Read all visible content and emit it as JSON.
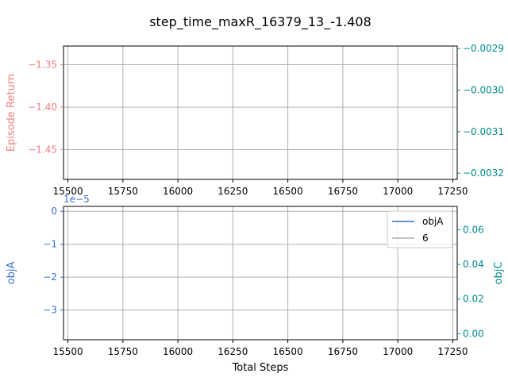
{
  "figure": {
    "title": "step_time_maxR_16379_13_-1.408"
  },
  "colors": {
    "left_top": "#f08080",
    "right_top": "#008b8b",
    "left_bottom": "#3b6fd0",
    "right_bottom": "#008b8b",
    "grid": "#b0b0b0",
    "line_objA": "#3b6fd0",
    "line_6": "#b0b0b0"
  },
  "chart_data": [
    {
      "type": "line",
      "title": "",
      "xlabel": "",
      "ylabel": "Episode Return",
      "y2label": "",
      "xlim": [
        15480,
        17270
      ],
      "ylim": [
        -1.485,
        -1.328
      ],
      "y2lim": [
        -0.003215,
        -0.002894
      ],
      "xticks": [
        15500,
        15750,
        16000,
        16250,
        16500,
        16750,
        17000,
        17250
      ],
      "yticks": [
        -1.35,
        -1.4,
        -1.45
      ],
      "y2ticks": [
        -0.0029,
        -0.003,
        -0.0031,
        -0.0032
      ],
      "grid": true,
      "series": []
    },
    {
      "type": "line",
      "title": "",
      "xlabel": "Total Steps",
      "ylabel": "objA",
      "y2label": "objC",
      "y_offset_label": "1e−5",
      "xlim": [
        15480,
        17270
      ],
      "ylim": [
        -3.9,
        0.15
      ],
      "y2lim": [
        -0.0035,
        0.0735
      ],
      "xticks": [
        15500,
        15750,
        16000,
        16250,
        16500,
        16750,
        17000,
        17250
      ],
      "yticks": [
        0,
        -1,
        -2,
        -3
      ],
      "y2ticks": [
        0.0,
        0.02,
        0.04,
        0.06
      ],
      "grid": true,
      "legend": {
        "position": "top-right",
        "entries": [
          "objA",
          "6"
        ]
      },
      "series": [
        {
          "name": "objA",
          "x": [],
          "y": []
        },
        {
          "name": "6",
          "x": [],
          "y": []
        }
      ]
    }
  ]
}
